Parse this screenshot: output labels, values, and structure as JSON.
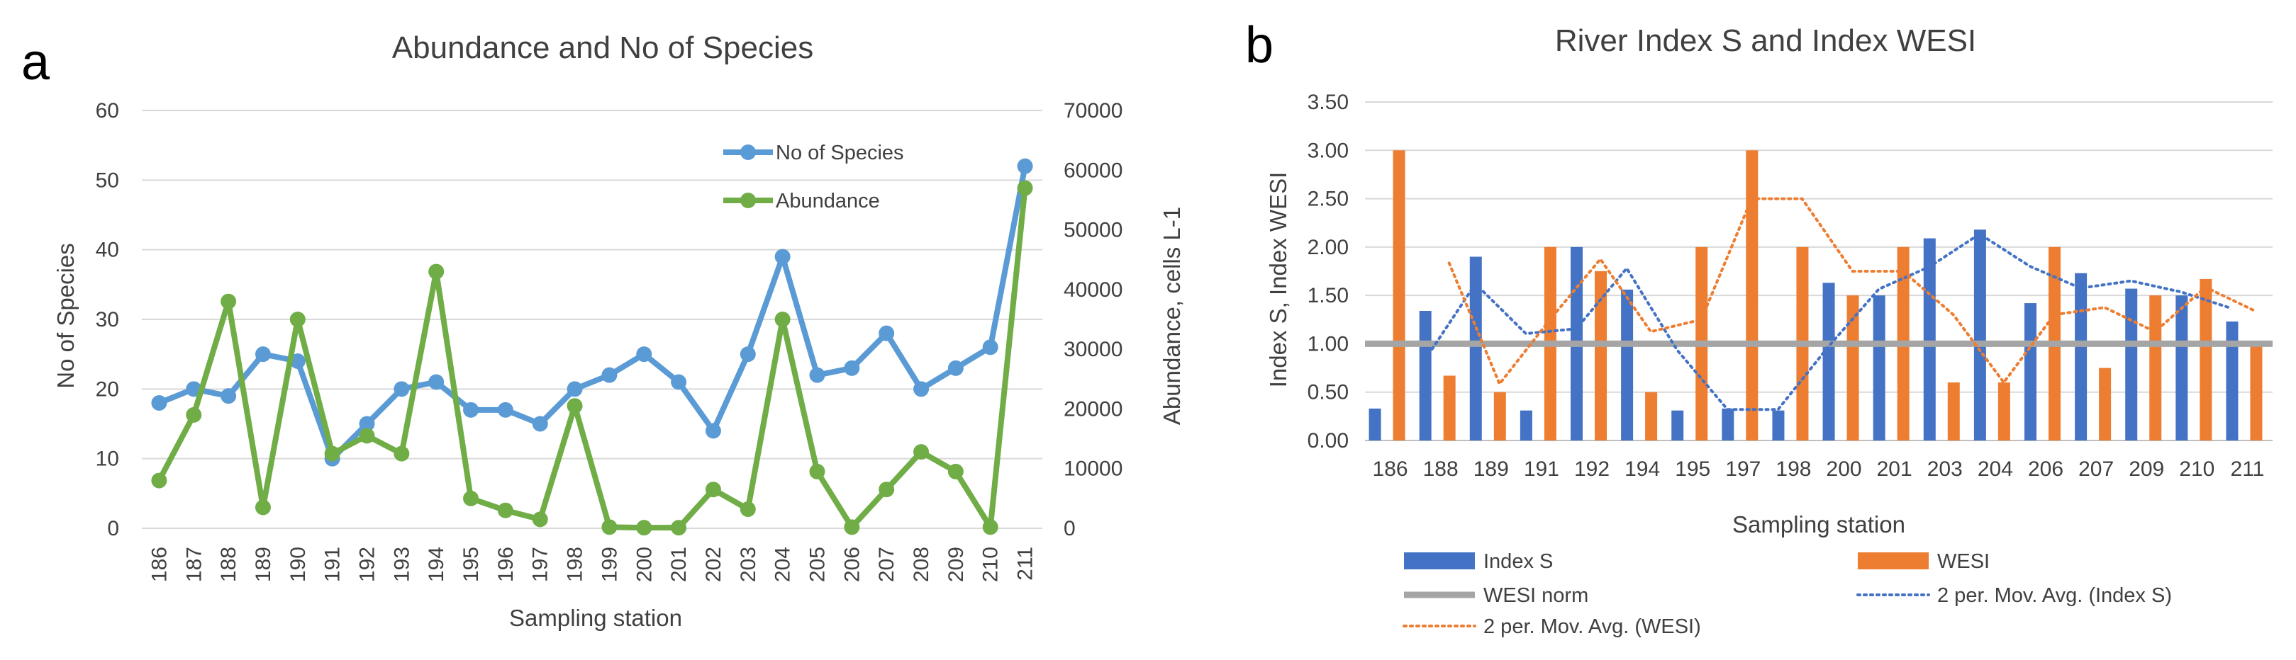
{
  "panel_labels": {
    "a": "a",
    "b": "b"
  },
  "chart_data": [
    {
      "type": "line",
      "title": "Abundance and No of Species",
      "xlabel": "Sampling station",
      "ylabel": "No of Species",
      "y2label": "Abundance, cells L-1",
      "ylim": [
        0,
        60
      ],
      "y2lim": [
        0,
        70000
      ],
      "yticks": [
        "0",
        "10",
        "20",
        "30",
        "40",
        "50",
        "60"
      ],
      "y2ticks": [
        "0",
        "10000",
        "20000",
        "30000",
        "40000",
        "50000",
        "60000",
        "70000"
      ],
      "categories": [
        "186",
        "187",
        "188",
        "189",
        "190",
        "191",
        "192",
        "193",
        "194",
        "195",
        "196",
        "197",
        "198",
        "199",
        "200",
        "201",
        "202",
        "203",
        "204",
        "205",
        "206",
        "207",
        "208",
        "209",
        "210",
        "211"
      ],
      "legend_position": "top-right",
      "series": [
        {
          "name": "No of Species",
          "axis": "left",
          "color": "#5b9bd5",
          "values": [
            18,
            20,
            19,
            25,
            24,
            10,
            15,
            20,
            21,
            17,
            17,
            15,
            20,
            22,
            25,
            21,
            14,
            25,
            39,
            22,
            23,
            28,
            20,
            23,
            26,
            52
          ]
        },
        {
          "name": "Abundance",
          "axis": "right",
          "color": "#70ad47",
          "values": [
            8000,
            19000,
            38000,
            3500,
            35000,
            12500,
            15500,
            12500,
            43000,
            5000,
            3000,
            1500,
            20500,
            200,
            100,
            100,
            6500,
            3200,
            35000,
            9500,
            200,
            6500,
            12800,
            9500,
            200,
            57000
          ]
        }
      ]
    },
    {
      "type": "bar",
      "title": "River Index S and Index WESI",
      "xlabel": "Sampling station",
      "ylabel": "Index S, Index WESI",
      "ylim": [
        0,
        3.5
      ],
      "yticks": [
        "0.00",
        "0.50",
        "1.00",
        "1.50",
        "2.00",
        "2.50",
        "3.00",
        "3.50"
      ],
      "categories": [
        "186",
        "188",
        "189",
        "191",
        "192",
        "194",
        "195",
        "197",
        "198",
        "200",
        "201",
        "203",
        "204",
        "206",
        "207",
        "209",
        "210",
        "211"
      ],
      "legend_position": "bottom",
      "series": [
        {
          "name": "Index S",
          "kind": "bar",
          "color": "#4472c4",
          "values": [
            0.33,
            1.34,
            1.9,
            0.31,
            2.0,
            1.56,
            0.31,
            0.33,
            0.31,
            1.63,
            1.5,
            2.09,
            2.18,
            1.42,
            1.73,
            1.57,
            1.5,
            1.23
          ]
        },
        {
          "name": "WESI",
          "kind": "bar",
          "color": "#ed7d31",
          "values": [
            3.0,
            0.67,
            0.5,
            2.0,
            1.75,
            0.5,
            2.0,
            3.0,
            2.0,
            1.5,
            2.0,
            0.6,
            0.6,
            2.0,
            0.75,
            1.5,
            1.67,
            1.0
          ]
        },
        {
          "name": "WESI norm",
          "kind": "line",
          "color": "#a5a5a5",
          "value": 1.0
        },
        {
          "name": "2 per. Mov. Avg. (Index S)",
          "kind": "moving-average",
          "of": "Index S",
          "period": 2,
          "color": "#4472c4"
        },
        {
          "name": "2 per. Mov. Avg. (WESI)",
          "kind": "moving-average",
          "of": "WESI",
          "period": 2,
          "color": "#ed7d31"
        }
      ]
    }
  ]
}
